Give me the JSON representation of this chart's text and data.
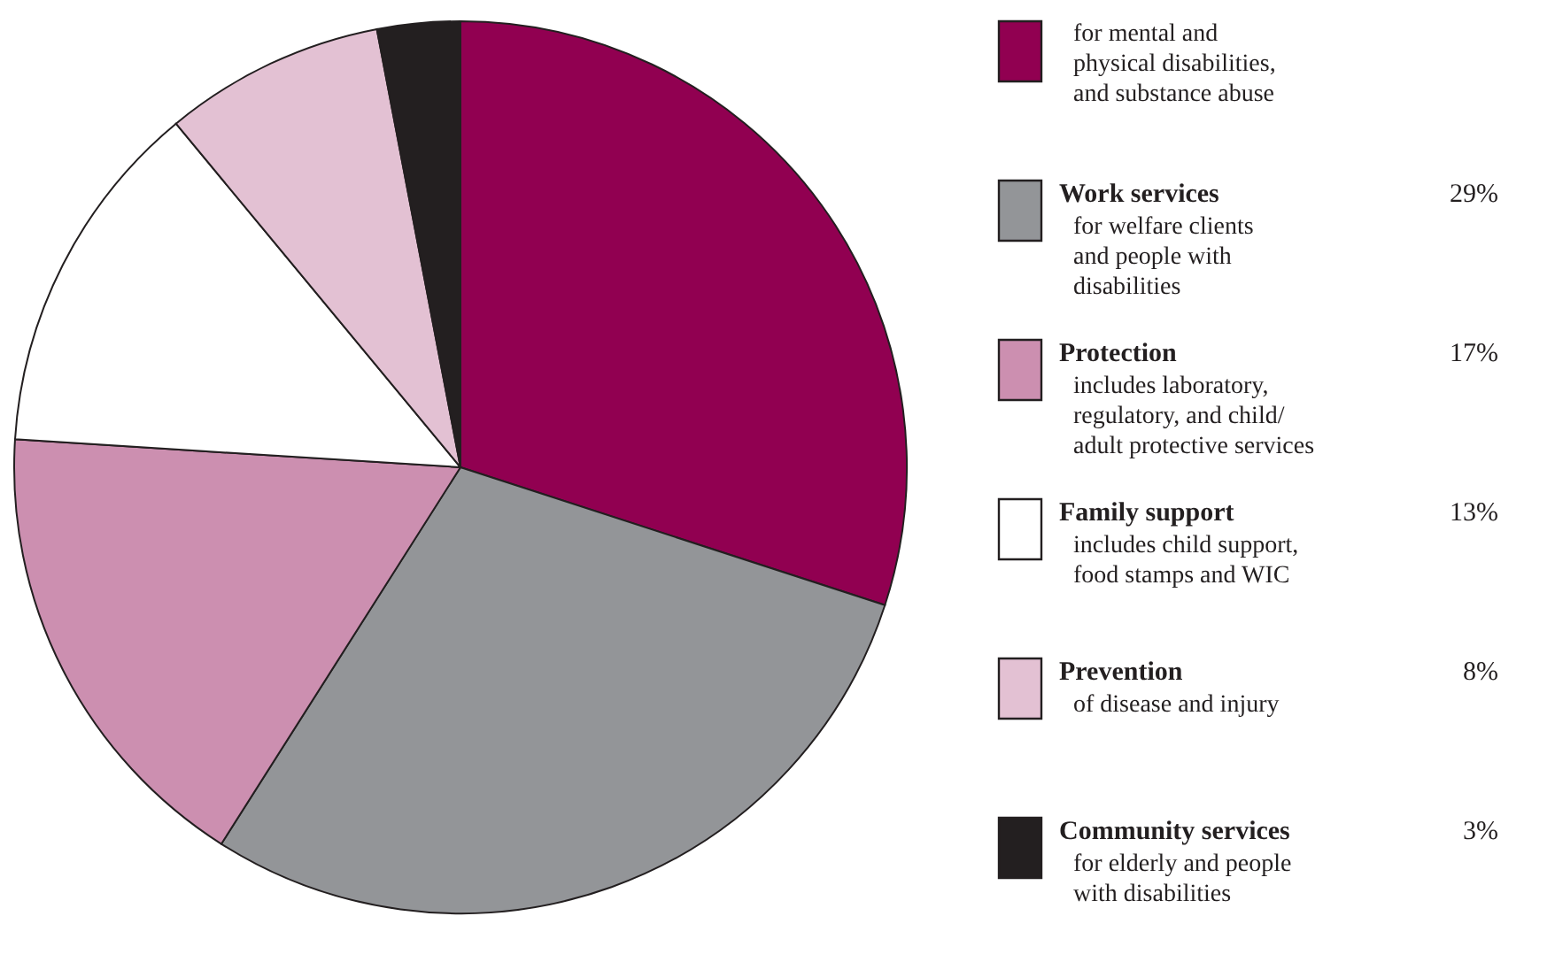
{
  "chart_data": {
    "type": "pie",
    "categories": [
      null,
      "Work services",
      "Protection",
      "Family support",
      "Prevention",
      "Community services"
    ],
    "values": [
      30,
      29,
      17,
      13,
      8,
      3
    ],
    "value_labels": [
      null,
      "29%",
      "17%",
      "13%",
      "8%",
      "3%"
    ],
    "colors": [
      "#910051",
      "#939598",
      "#cc8fb0",
      "#ffffff",
      "#e3c1d3",
      "#231f20"
    ],
    "annotations": [
      "for mental and\nphysical disabilities,\nand substance abuse",
      "for welfare clients\nand people with\ndisabilities",
      "includes laboratory,\nregulatory, and child/\nadult protective services",
      "includes child support,\nfood stamps and WIC",
      "of disease and injury",
      "for elderly and people\nwith disabilities"
    ],
    "legend": "right"
  }
}
